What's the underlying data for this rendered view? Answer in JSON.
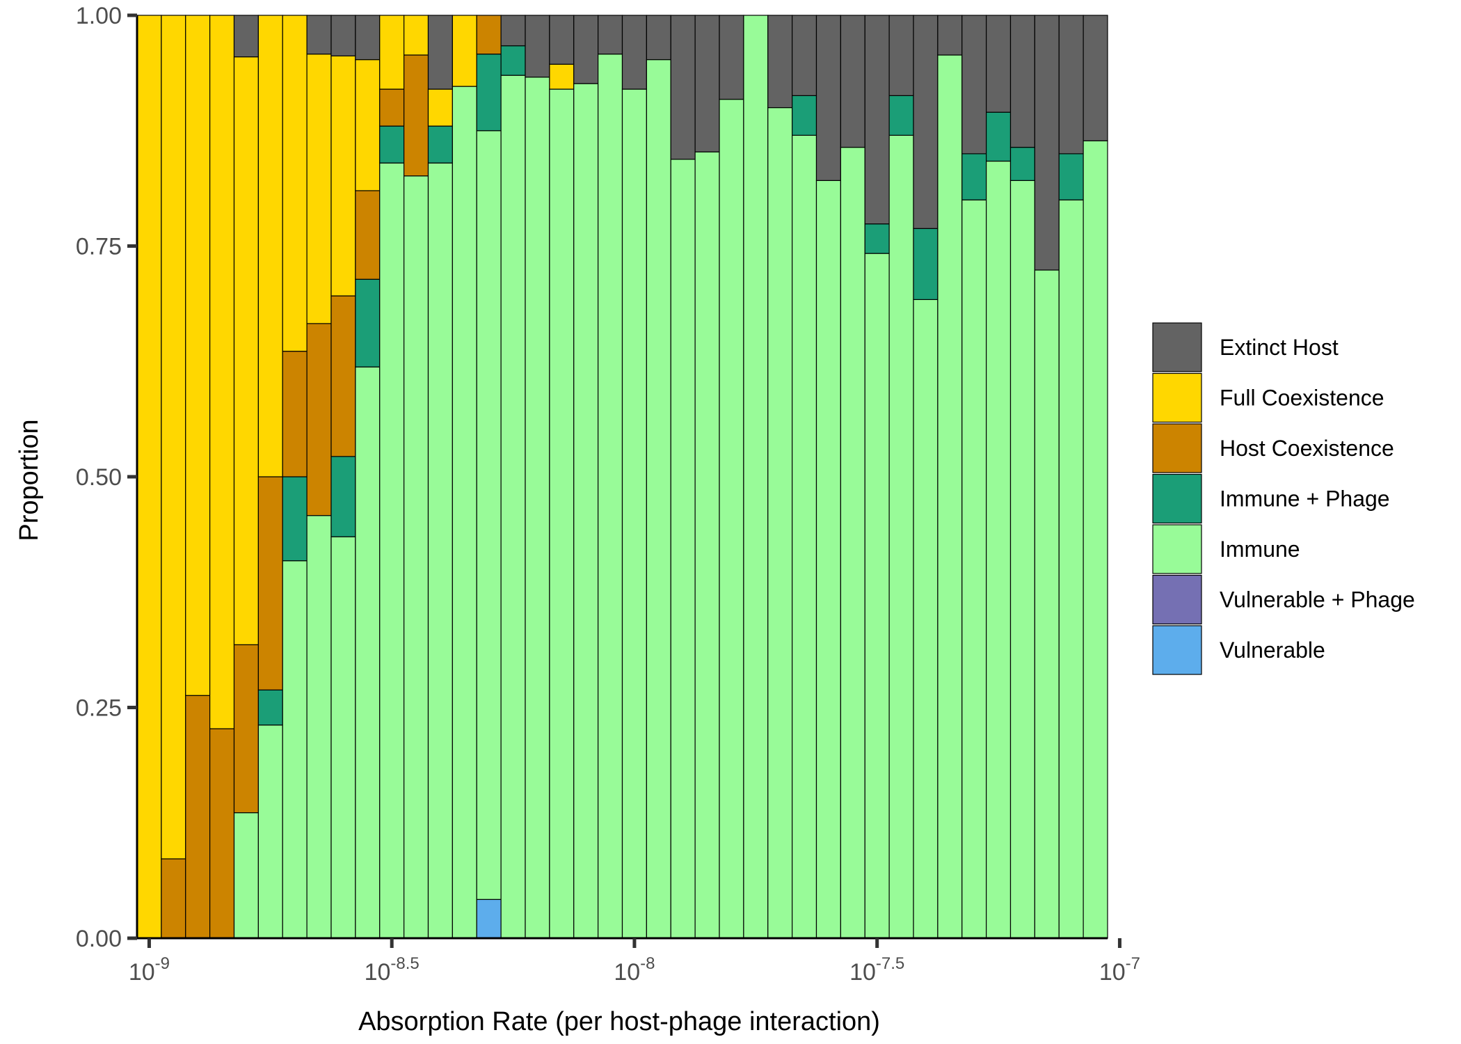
{
  "chart_data": {
    "type": "bar",
    "stacked": true,
    "title": "",
    "xlabel": "Absorption Rate (per host-phage interaction)",
    "ylabel": "Proportion",
    "x_scale": "log10",
    "xlim": [
      1e-09,
      1e-07
    ],
    "ylim": [
      0,
      1
    ],
    "grid": false,
    "legend_position": "right",
    "y_ticks": [
      {
        "value": 0,
        "label": "0.00"
      },
      {
        "value": 0.25,
        "label": "0.25"
      },
      {
        "value": 0.5,
        "label": "0.50"
      },
      {
        "value": 0.75,
        "label": "0.75"
      },
      {
        "value": 1,
        "label": "1.00"
      }
    ],
    "x_ticks": [
      {
        "exponent": -9,
        "base": "10",
        "power": "-9"
      },
      {
        "exponent": -8.5,
        "base": "10",
        "power": "-8.5"
      },
      {
        "exponent": -8,
        "base": "10",
        "power": "-8"
      },
      {
        "exponent": -7.5,
        "base": "10",
        "power": "-7.5"
      },
      {
        "exponent": -7,
        "base": "10",
        "power": "-7"
      }
    ],
    "series": [
      {
        "name": "Extinct Host",
        "color": "#636363"
      },
      {
        "name": "Full Coexistence",
        "color": "#FFD700"
      },
      {
        "name": "Host Coexistence",
        "color": "#CC8400"
      },
      {
        "name": "Immune + Phage",
        "color": "#1B9E77"
      },
      {
        "name": "Immune",
        "color": "#98FB98"
      },
      {
        "name": "Vulnerable + Phage",
        "color": "#7570B3"
      },
      {
        "name": "Vulnerable",
        "color": "#5DADEC"
      }
    ],
    "bars": [
      {
        "log10_x": -9.0,
        "Vulnerable": 0,
        "Vulnerable + Phage": 0,
        "Immune": 0,
        "Immune + Phage": 0,
        "Host Coexistence": 0,
        "Full Coexistence": 1.0,
        "Extinct Host": 0
      },
      {
        "log10_x": -8.95,
        "Vulnerable": 0,
        "Vulnerable + Phage": 0,
        "Immune": 0,
        "Immune + Phage": 0,
        "Host Coexistence": 0.086,
        "Full Coexistence": 0.914,
        "Extinct Host": 0
      },
      {
        "log10_x": -8.9,
        "Vulnerable": 0,
        "Vulnerable + Phage": 0,
        "Immune": 0,
        "Immune + Phage": 0,
        "Host Coexistence": 0.263,
        "Full Coexistence": 0.737,
        "Extinct Host": 0
      },
      {
        "log10_x": -8.85,
        "Vulnerable": 0,
        "Vulnerable + Phage": 0,
        "Immune": 0,
        "Immune + Phage": 0,
        "Host Coexistence": 0.227,
        "Full Coexistence": 0.773,
        "Extinct Host": 0
      },
      {
        "log10_x": -8.8,
        "Vulnerable": 0,
        "Vulnerable + Phage": 0,
        "Immune": 0.136,
        "Immune + Phage": 0,
        "Host Coexistence": 0.182,
        "Full Coexistence": 0.637,
        "Extinct Host": 0.045
      },
      {
        "log10_x": -8.75,
        "Vulnerable": 0,
        "Vulnerable + Phage": 0,
        "Immune": 0.231,
        "Immune + Phage": 0.038,
        "Host Coexistence": 0.231,
        "Full Coexistence": 0.5,
        "Extinct Host": 0
      },
      {
        "log10_x": -8.7,
        "Vulnerable": 0,
        "Vulnerable + Phage": 0,
        "Immune": 0.409,
        "Immune + Phage": 0.091,
        "Host Coexistence": 0.136,
        "Full Coexistence": 0.364,
        "Extinct Host": 0
      },
      {
        "log10_x": -8.65,
        "Vulnerable": 0,
        "Vulnerable + Phage": 0,
        "Immune": 0.458,
        "Immune + Phage": 0,
        "Host Coexistence": 0.208,
        "Full Coexistence": 0.292,
        "Extinct Host": 0.042
      },
      {
        "log10_x": -8.6,
        "Vulnerable": 0,
        "Vulnerable + Phage": 0,
        "Immune": 0.435,
        "Immune + Phage": 0.087,
        "Host Coexistence": 0.174,
        "Full Coexistence": 0.26,
        "Extinct Host": 0.044
      },
      {
        "log10_x": -8.55,
        "Vulnerable": 0,
        "Vulnerable + Phage": 0,
        "Immune": 0.619,
        "Immune + Phage": 0.095,
        "Host Coexistence": 0.096,
        "Full Coexistence": 0.142,
        "Extinct Host": 0.048
      },
      {
        "log10_x": -8.5,
        "Vulnerable": 0,
        "Vulnerable + Phage": 0,
        "Immune": 0.84,
        "Immune + Phage": 0.04,
        "Host Coexistence": 0.04,
        "Full Coexistence": 0.08,
        "Extinct Host": 0
      },
      {
        "log10_x": -8.45,
        "Vulnerable": 0,
        "Vulnerable + Phage": 0,
        "Immune": 0.826,
        "Immune + Phage": 0,
        "Host Coexistence": 0.131,
        "Full Coexistence": 0.043,
        "Extinct Host": 0
      },
      {
        "log10_x": -8.4,
        "Vulnerable": 0,
        "Vulnerable + Phage": 0,
        "Immune": 0.84,
        "Immune + Phage": 0.04,
        "Host Coexistence": 0,
        "Full Coexistence": 0.04,
        "Extinct Host": 0.08
      },
      {
        "log10_x": -8.35,
        "Vulnerable": 0,
        "Vulnerable + Phage": 0,
        "Immune": 0.923,
        "Immune + Phage": 0,
        "Host Coexistence": 0,
        "Full Coexistence": 0.077,
        "Extinct Host": 0
      },
      {
        "log10_x": -8.3,
        "Vulnerable": 0.042,
        "Vulnerable + Phage": 0,
        "Immune": 0.833,
        "Immune + Phage": 0.083,
        "Host Coexistence": 0.042,
        "Full Coexistence": 0,
        "Extinct Host": 0
      },
      {
        "log10_x": -8.25,
        "Vulnerable": 0,
        "Vulnerable + Phage": 0,
        "Immune": 0.935,
        "Immune + Phage": 0.032,
        "Host Coexistence": 0,
        "Full Coexistence": 0,
        "Extinct Host": 0.033
      },
      {
        "log10_x": -8.2,
        "Vulnerable": 0,
        "Vulnerable + Phage": 0,
        "Immune": 0.933,
        "Immune + Phage": 0,
        "Host Coexistence": 0,
        "Full Coexistence": 0,
        "Extinct Host": 0.067
      },
      {
        "log10_x": -8.15,
        "Vulnerable": 0,
        "Vulnerable + Phage": 0,
        "Immune": 0.92,
        "Immune + Phage": 0,
        "Host Coexistence": 0,
        "Full Coexistence": 0.027,
        "Extinct Host": 0.053
      },
      {
        "log10_x": -8.1,
        "Vulnerable": 0,
        "Vulnerable + Phage": 0,
        "Immune": 0.926,
        "Immune + Phage": 0,
        "Host Coexistence": 0,
        "Full Coexistence": 0,
        "Extinct Host": 0.074
      },
      {
        "log10_x": -8.05,
        "Vulnerable": 0,
        "Vulnerable + Phage": 0,
        "Immune": 0.958,
        "Immune + Phage": 0,
        "Host Coexistence": 0,
        "Full Coexistence": 0,
        "Extinct Host": 0.042
      },
      {
        "log10_x": -8.0,
        "Vulnerable": 0,
        "Vulnerable + Phage": 0,
        "Immune": 0.92,
        "Immune + Phage": 0,
        "Host Coexistence": 0,
        "Full Coexistence": 0,
        "Extinct Host": 0.08
      },
      {
        "log10_x": -7.95,
        "Vulnerable": 0,
        "Vulnerable + Phage": 0,
        "Immune": 0.952,
        "Immune + Phage": 0,
        "Host Coexistence": 0,
        "Full Coexistence": 0,
        "Extinct Host": 0.048
      },
      {
        "log10_x": -7.9,
        "Vulnerable": 0,
        "Vulnerable + Phage": 0,
        "Immune": 0.844,
        "Immune + Phage": 0,
        "Host Coexistence": 0,
        "Full Coexistence": 0,
        "Extinct Host": 0.156
      },
      {
        "log10_x": -7.85,
        "Vulnerable": 0,
        "Vulnerable + Phage": 0,
        "Immune": 0.852,
        "Immune + Phage": 0,
        "Host Coexistence": 0,
        "Full Coexistence": 0,
        "Extinct Host": 0.148
      },
      {
        "log10_x": -7.8,
        "Vulnerable": 0,
        "Vulnerable + Phage": 0,
        "Immune": 0.909,
        "Immune + Phage": 0,
        "Host Coexistence": 0,
        "Full Coexistence": 0,
        "Extinct Host": 0.091
      },
      {
        "log10_x": -7.75,
        "Vulnerable": 0,
        "Vulnerable + Phage": 0,
        "Immune": 1.0,
        "Immune + Phage": 0,
        "Host Coexistence": 0,
        "Full Coexistence": 0,
        "Extinct Host": 0
      },
      {
        "log10_x": -7.7,
        "Vulnerable": 0,
        "Vulnerable + Phage": 0,
        "Immune": 0.9,
        "Immune + Phage": 0,
        "Host Coexistence": 0,
        "Full Coexistence": 0,
        "Extinct Host": 0.1
      },
      {
        "log10_x": -7.65,
        "Vulnerable": 0,
        "Vulnerable + Phage": 0,
        "Immune": 0.87,
        "Immune + Phage": 0.043,
        "Host Coexistence": 0,
        "Full Coexistence": 0,
        "Extinct Host": 0.087
      },
      {
        "log10_x": -7.6,
        "Vulnerable": 0,
        "Vulnerable + Phage": 0,
        "Immune": 0.821,
        "Immune + Phage": 0,
        "Host Coexistence": 0,
        "Full Coexistence": 0,
        "Extinct Host": 0.179
      },
      {
        "log10_x": -7.55,
        "Vulnerable": 0,
        "Vulnerable + Phage": 0,
        "Immune": 0.857,
        "Immune + Phage": 0,
        "Host Coexistence": 0,
        "Full Coexistence": 0,
        "Extinct Host": 0.143
      },
      {
        "log10_x": -7.5,
        "Vulnerable": 0,
        "Vulnerable + Phage": 0,
        "Immune": 0.742,
        "Immune + Phage": 0.032,
        "Host Coexistence": 0,
        "Full Coexistence": 0,
        "Extinct Host": 0.226
      },
      {
        "log10_x": -7.45,
        "Vulnerable": 0,
        "Vulnerable + Phage": 0,
        "Immune": 0.87,
        "Immune + Phage": 0.043,
        "Host Coexistence": 0,
        "Full Coexistence": 0,
        "Extinct Host": 0.087
      },
      {
        "log10_x": -7.4,
        "Vulnerable": 0,
        "Vulnerable + Phage": 0,
        "Immune": 0.692,
        "Immune + Phage": 0.077,
        "Host Coexistence": 0,
        "Full Coexistence": 0,
        "Extinct Host": 0.231
      },
      {
        "log10_x": -7.35,
        "Vulnerable": 0,
        "Vulnerable + Phage": 0,
        "Immune": 0.957,
        "Immune + Phage": 0,
        "Host Coexistence": 0,
        "Full Coexistence": 0,
        "Extinct Host": 0.043
      },
      {
        "log10_x": -7.3,
        "Vulnerable": 0,
        "Vulnerable + Phage": 0,
        "Immune": 0.8,
        "Immune + Phage": 0.05,
        "Host Coexistence": 0,
        "Full Coexistence": 0,
        "Extinct Host": 0.15
      },
      {
        "log10_x": -7.25,
        "Vulnerable": 0,
        "Vulnerable + Phage": 0,
        "Immune": 0.842,
        "Immune + Phage": 0.053,
        "Host Coexistence": 0,
        "Full Coexistence": 0,
        "Extinct Host": 0.105
      },
      {
        "log10_x": -7.2,
        "Vulnerable": 0,
        "Vulnerable + Phage": 0,
        "Immune": 0.821,
        "Immune + Phage": 0.036,
        "Host Coexistence": 0,
        "Full Coexistence": 0,
        "Extinct Host": 0.143
      },
      {
        "log10_x": -7.15,
        "Vulnerable": 0,
        "Vulnerable + Phage": 0,
        "Immune": 0.724,
        "Immune + Phage": 0,
        "Host Coexistence": 0,
        "Full Coexistence": 0,
        "Extinct Host": 0.276
      },
      {
        "log10_x": -7.1,
        "Vulnerable": 0,
        "Vulnerable + Phage": 0,
        "Immune": 0.8,
        "Immune + Phage": 0.05,
        "Host Coexistence": 0,
        "Full Coexistence": 0,
        "Extinct Host": 0.15
      },
      {
        "log10_x": -7.05,
        "Vulnerable": 0,
        "Vulnerable + Phage": 0,
        "Immune": 0.864,
        "Immune + Phage": 0,
        "Host Coexistence": 0,
        "Full Coexistence": 0,
        "Extinct Host": 0.136
      }
    ]
  }
}
